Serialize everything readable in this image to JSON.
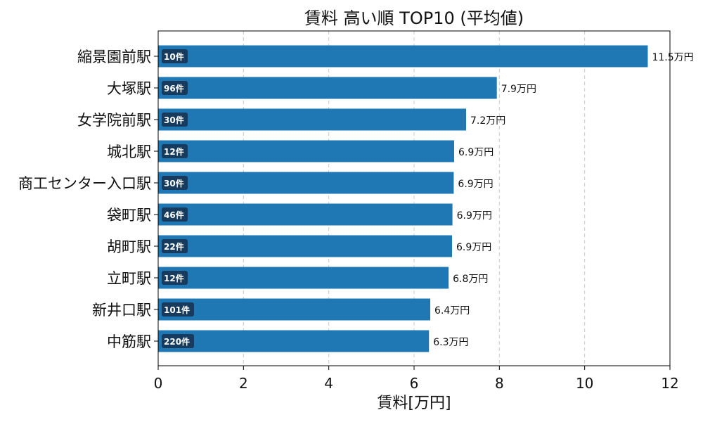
{
  "chart_data": {
    "type": "bar",
    "orientation": "horizontal",
    "title": "賃料 高い順 TOP10 (平均値)",
    "xlabel": "賃料[万円]",
    "ylabel": "",
    "xlim": [
      0,
      12
    ],
    "xticks": [
      "0",
      "2",
      "4",
      "6",
      "8",
      "10",
      "12"
    ],
    "grid": "x-dashed",
    "bar_color": "#1f77b4",
    "badge_color": "#163b5c",
    "categories": [
      "縮景園前駅",
      "大塚駅",
      "女学院前駅",
      "城北駅",
      "商工センター入口駅",
      "袋町駅",
      "胡町駅",
      "立町駅",
      "新井口駅",
      "中筋駅"
    ],
    "values": [
      11.48,
      7.94,
      7.22,
      6.94,
      6.93,
      6.9,
      6.89,
      6.81,
      6.38,
      6.35
    ],
    "value_labels": [
      "11.5万円",
      "7.9万円",
      "7.2万円",
      "6.9万円",
      "6.9万円",
      "6.9万円",
      "6.9万円",
      "6.8万円",
      "6.4万円",
      "6.3万円"
    ],
    "counts": [
      "10件",
      "96件",
      "30件",
      "12件",
      "30件",
      "46件",
      "22件",
      "12件",
      "101件",
      "220件"
    ]
  }
}
